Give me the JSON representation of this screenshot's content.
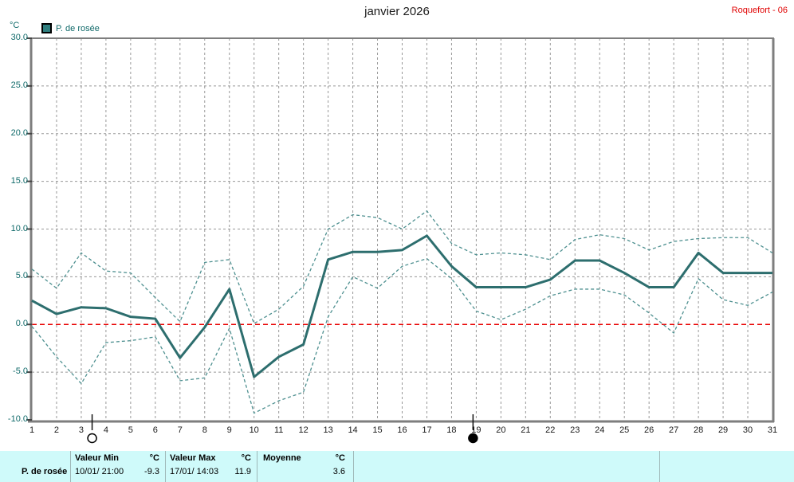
{
  "header": {
    "title": "janvier 2026",
    "station": "Roquefort - 06"
  },
  "legend": {
    "label": "P. de rosée",
    "swatch_color": "#2f7f7f"
  },
  "axis": {
    "unit_label": "°C"
  },
  "chart_data": {
    "type": "line",
    "title": "janvier 2026",
    "ylabel": "°C",
    "x": [
      1,
      2,
      3,
      4,
      5,
      6,
      7,
      8,
      9,
      10,
      11,
      12,
      13,
      14,
      15,
      16,
      17,
      18,
      19,
      20,
      21,
      22,
      23,
      24,
      25,
      26,
      27,
      28,
      29,
      30,
      31
    ],
    "series": [
      {
        "id": "dew-point-mean",
        "name": "P. de rosée",
        "style": "solid",
        "color": "#2d6e6e",
        "values": [
          2.5,
          1.1,
          1.8,
          1.7,
          0.8,
          0.6,
          -3.5,
          -0.3,
          3.7,
          -5.5,
          -3.4,
          -2.1,
          6.8,
          7.6,
          7.6,
          7.8,
          9.3,
          6.1,
          3.9,
          3.9,
          3.9,
          4.7,
          6.7,
          6.7,
          5.4,
          3.9,
          3.9,
          7.5,
          5.4,
          5.4,
          5.4
        ]
      },
      {
        "id": "dew-point-max",
        "name": "maximum",
        "style": "dashed",
        "color": "#4e9090",
        "values": [
          5.8,
          3.8,
          7.5,
          5.6,
          5.4,
          2.8,
          0.3,
          6.5,
          6.8,
          0.1,
          1.6,
          4.0,
          10.0,
          11.5,
          11.2,
          10.0,
          11.9,
          8.5,
          7.3,
          7.5,
          7.3,
          6.8,
          8.9,
          9.4,
          9.0,
          7.8,
          8.7,
          9.0,
          9.1,
          9.1,
          7.5
        ]
      },
      {
        "id": "dew-point-min",
        "name": "minimum",
        "style": "dashed",
        "color": "#4e9090",
        "values": [
          -0.2,
          -3.4,
          -6.2,
          -1.9,
          -1.7,
          -1.3,
          -5.9,
          -5.6,
          -0.4,
          -9.3,
          -8.0,
          -7.1,
          0.8,
          5.0,
          3.8,
          6.1,
          6.9,
          4.8,
          1.4,
          0.5,
          1.6,
          3.0,
          3.7,
          3.7,
          3.1,
          1.2,
          -0.9,
          4.8,
          2.6,
          2.0,
          3.4
        ]
      }
    ],
    "ylim": [
      -10,
      30
    ],
    "ytick_step": 5,
    "grid": true,
    "grid_color": "#989898",
    "frame_color": "#7e7e7e",
    "zero_line_color": "#e80000",
    "moon_markers": [
      {
        "day": 3.44,
        "phase": "full"
      },
      {
        "day": 18.87,
        "phase": "new"
      }
    ]
  },
  "table": {
    "row_label": "P. de rosée",
    "col_min": {
      "header": "Valeur Min",
      "unit": "°C",
      "datetime": "10/01/ 21:00",
      "value": "-9.3"
    },
    "col_max": {
      "header": "Valeur Max",
      "unit": "°C",
      "datetime": "17/01/ 14:03",
      "value": "11.9"
    },
    "col_avg": {
      "header": "Moyenne",
      "unit": "°C",
      "value": "3.6"
    }
  }
}
